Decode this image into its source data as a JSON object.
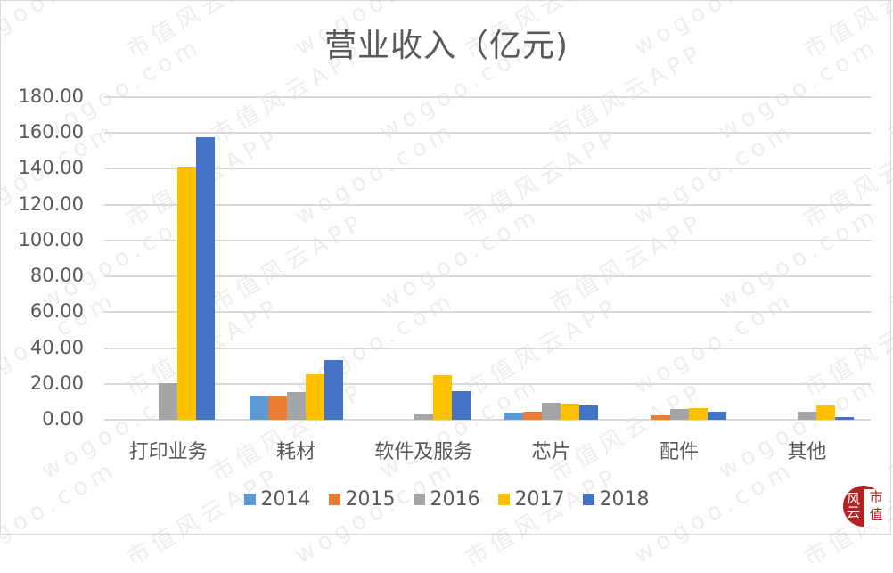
{
  "chart_data": {
    "type": "bar",
    "title": "营业收入（亿元)",
    "xlabel": "",
    "ylabel": "",
    "ylim": [
      0,
      180
    ],
    "yticks": [
      "0.00",
      "20.00",
      "40.00",
      "60.00",
      "80.00",
      "100.00",
      "120.00",
      "140.00",
      "160.00",
      "180.00"
    ],
    "grid": true,
    "legend_position": "bottom",
    "categories": [
      "打印业务",
      "耗材",
      "软件及服务",
      "芯片",
      "配件",
      "其他"
    ],
    "series": [
      {
        "name": "2014",
        "color": "#5b9bd5",
        "values": [
          0,
          13.4,
          0,
          4.0,
          0,
          0
        ]
      },
      {
        "name": "2015",
        "color": "#ed7d31",
        "values": [
          0,
          13.2,
          0,
          4.5,
          2.5,
          0
        ]
      },
      {
        "name": "2016",
        "color": "#a5a5a5",
        "values": [
          20.4,
          15.4,
          3.0,
          9.3,
          6.0,
          4.7
        ]
      },
      {
        "name": "2017",
        "color": "#ffc000",
        "values": [
          141.0,
          25.3,
          24.8,
          8.9,
          6.6,
          8.2
        ]
      },
      {
        "name": "2018",
        "color": "#4472c4",
        "values": [
          157.5,
          33.2,
          16.0,
          8.0,
          4.5,
          1.5
        ]
      }
    ]
  },
  "watermark": {
    "texts": [
      "wogoo.com",
      "市值风云APP"
    ]
  },
  "logo": {
    "left_text": "风云",
    "right_text": "市值"
  }
}
